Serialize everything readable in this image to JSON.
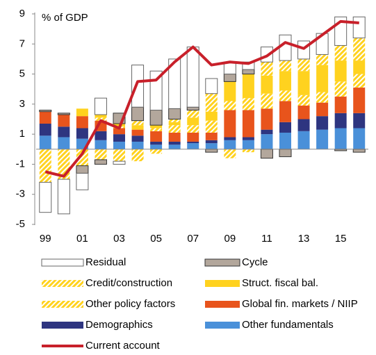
{
  "chart_data": {
    "type": "bar",
    "y_label": "% of GDP",
    "categories": [
      "99",
      null,
      "01",
      null,
      "03",
      null,
      "05",
      null,
      "07",
      null,
      "09",
      null,
      "11",
      null,
      "13",
      null,
      "15",
      null
    ],
    "ylim": [
      -5,
      9
    ],
    "yticks": [
      -5,
      -3,
      -1,
      1,
      3,
      5,
      7,
      9
    ],
    "series": [
      {
        "name": "Residual",
        "color": "#ffffff",
        "values": [
          -2.0,
          -2.3,
          -1.1,
          1.1,
          -0.2,
          2.8,
          2.6,
          3.3,
          4.0,
          1.0,
          0.8,
          0.5,
          1.0,
          1.7,
          1.2,
          1.4,
          1.9,
          1.4
        ]
      },
      {
        "name": "Cycle",
        "color": "#b3a79c",
        "values": [
          0.1,
          0.1,
          -0.5,
          -0.3,
          0.7,
          0.9,
          1.0,
          0.7,
          0.2,
          -0.2,
          0.5,
          0.3,
          -0.6,
          -0.5,
          0,
          0,
          -0.1,
          -0.2
        ]
      },
      {
        "name": "Credit/construction",
        "color": "#ffd21f",
        "pattern": "hatch",
        "values": [
          -1.3,
          -1.2,
          -0.5,
          -0.7,
          -0.8,
          0.3,
          -0.3,
          0.2,
          0.5,
          1.2,
          -0.6,
          -0.2,
          0.9,
          0.7,
          0.8,
          0.7,
          1.0,
          1.5
        ]
      },
      {
        "name": "Struct. fiscal bal.",
        "color": "#ffd21f",
        "values": [
          0,
          0,
          0.5,
          0.2,
          0.2,
          0.3,
          0.2,
          0.2,
          0.5,
          0.6,
          1.3,
          1.6,
          1.2,
          1.3,
          1.6,
          1.8,
          1.4,
          0.9
        ]
      },
      {
        "name": "Other policy factors",
        "color": "#ffd21f",
        "pattern": "hatch",
        "values": [
          -0.9,
          -0.8,
          -0.6,
          0.2,
          0.1,
          -0.8,
          0.2,
          0.5,
          0.5,
          0.8,
          0.6,
          0.8,
          1.0,
          0.7,
          0.7,
          0.7,
          1.0,
          0.9
        ]
      },
      {
        "name": "Global fin. markets / NIIP",
        "color": "#e8541c",
        "values": [
          0.8,
          0.8,
          0.8,
          0.7,
          0.4,
          0.4,
          0.7,
          0.6,
          0.6,
          0.5,
          1.8,
          1.8,
          1.4,
          1.4,
          0.9,
          0.9,
          1.1,
          1.7
        ]
      },
      {
        "name": "Demographics",
        "color": "#2e3580",
        "values": [
          0.8,
          0.7,
          0.7,
          0.6,
          0.5,
          0.4,
          0.2,
          0.2,
          0.1,
          0.2,
          0.2,
          0.2,
          0.3,
          0.7,
          0.8,
          0.9,
          1.0,
          1.0
        ]
      },
      {
        "name": "Other fundamentals",
        "color": "#4a90d9",
        "values": [
          0.9,
          0.8,
          0.7,
          0.6,
          0.5,
          0.5,
          0.3,
          0.3,
          0.4,
          0.4,
          0.6,
          0.6,
          1.0,
          1.1,
          1.2,
          1.3,
          1.4,
          1.4
        ]
      },
      {
        "name": "Current account",
        "type": "line",
        "color": "#c8202a",
        "values": [
          -1.5,
          -1.8,
          -0.3,
          1.9,
          1.4,
          4.5,
          4.6,
          5.8,
          6.8,
          5.6,
          5.8,
          5.7,
          6.2,
          7.1,
          6.7,
          7.6,
          8.5,
          8.4
        ]
      }
    ]
  }
}
